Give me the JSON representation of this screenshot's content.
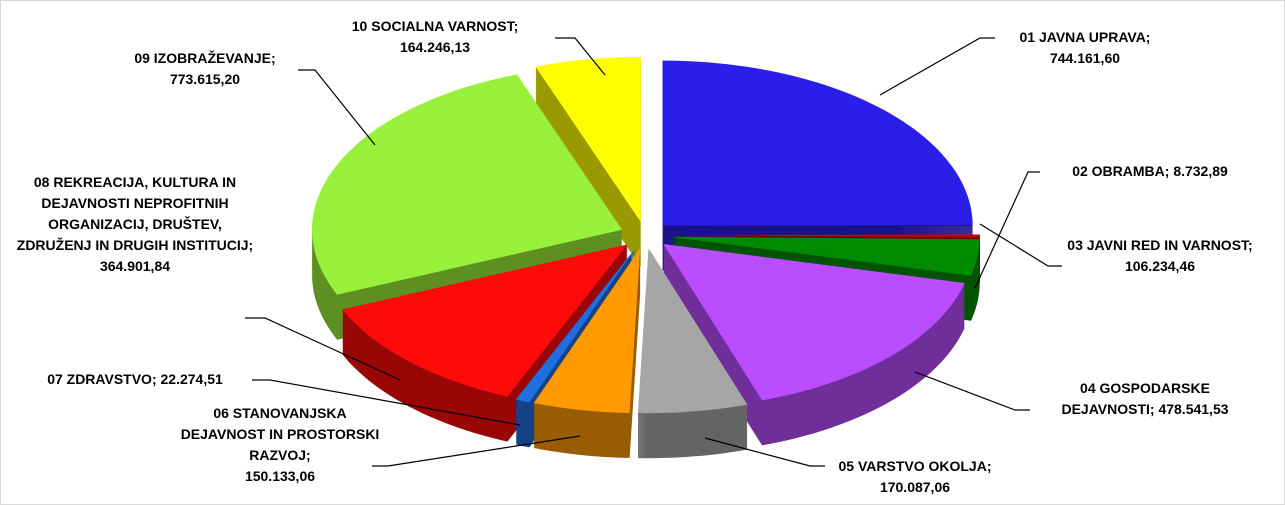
{
  "chart_data": {
    "type": "pie",
    "categories": [
      "01 JAVNA UPRAVA;",
      "02 OBRAMBA;",
      "03 JAVNI RED IN VARNOST;",
      "04 GOSPODARSKE DEJAVNOSTI;",
      "05 VARSTVO OKOLJA;",
      "06 STANOVANJSKA DEJAVNOST IN PROSTORSKI RAZVOJ;",
      "07 ZDRAVSTVO;",
      "08 REKREACIJA, KULTURA IN DEJAVNOSTI NEPROFITNIH ORGANIZACIJ, DRUŠTEV, ZDRUŽENJ IN DRUGIH INSTITUCIJ;",
      "09 IZOBRAŽEVANJE;",
      "10 SOCIALNA VARNOST;"
    ],
    "values": [
      744161.6,
      8732.89,
      106234.46,
      478541.53,
      170087.06,
      150133.06,
      22274.51,
      364901.84,
      773615.2,
      164246.13
    ],
    "value_labels": [
      "744.161,60",
      "8.732,89",
      "106.234,46",
      "478.541,53",
      "170.087,06",
      "150.133,06",
      "22.274,51",
      "364.901,84",
      "773.615,20",
      "164.246,13"
    ],
    "colors": [
      "#2b1ee8",
      "#c00000",
      "#008a00",
      "#b94dff",
      "#a6a6a6",
      "#ff9a00",
      "#1f6fe0",
      "#ff0a0a",
      "#99f03a",
      "#ffff00"
    ]
  }
}
